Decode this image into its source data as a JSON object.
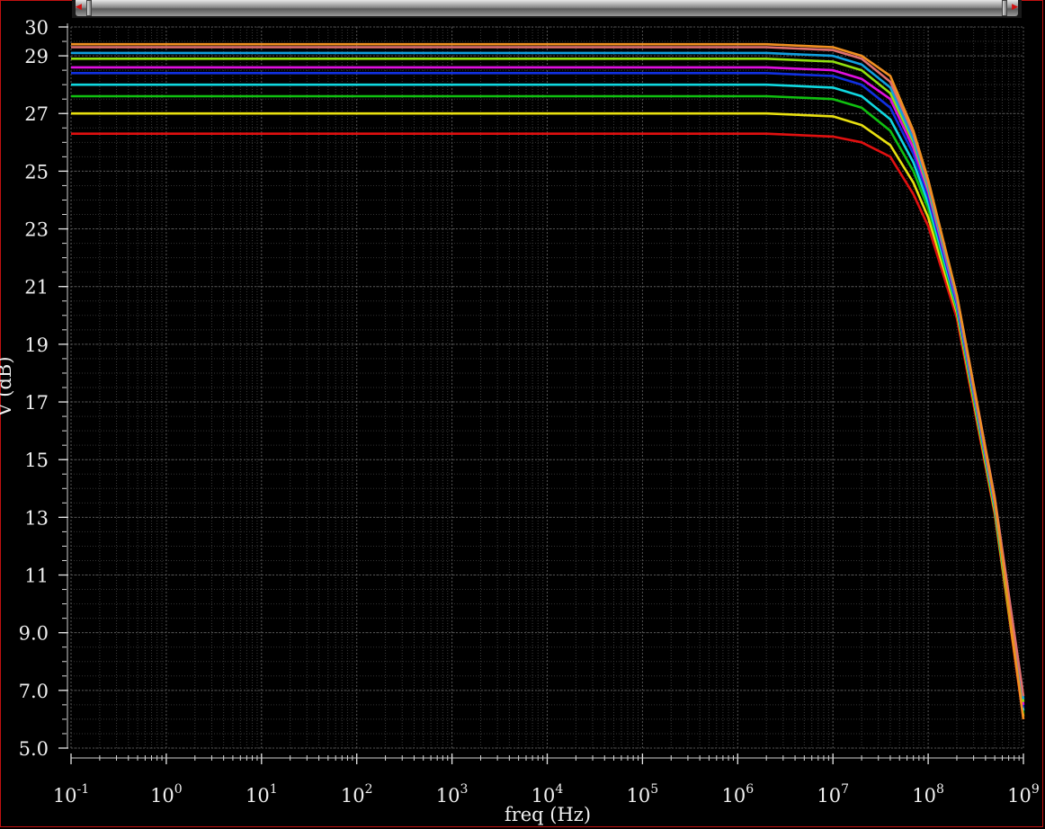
{
  "window": {
    "accent_color": "#c01010"
  },
  "scrollbar": {
    "left_arrow_icon": "arrow-left-icon",
    "right_arrow_icon": "arrow-right-icon"
  },
  "chart_data": {
    "type": "line",
    "title": "",
    "xlabel": "freq (Hz)",
    "ylabel": "V (dB)",
    "x_scale": "log",
    "xlim": [
      0.1,
      1000000000
    ],
    "ylim": [
      5.0,
      30
    ],
    "grid": true,
    "background": "#000000",
    "x_ticks": [
      {
        "base": "10",
        "exp": "-1",
        "value": 0.1
      },
      {
        "base": "10",
        "exp": "0",
        "value": 1
      },
      {
        "base": "10",
        "exp": "1",
        "value": 10
      },
      {
        "base": "10",
        "exp": "2",
        "value": 100
      },
      {
        "base": "10",
        "exp": "3",
        "value": 1000
      },
      {
        "base": "10",
        "exp": "4",
        "value": 10000
      },
      {
        "base": "10",
        "exp": "5",
        "value": 100000
      },
      {
        "base": "10",
        "exp": "6",
        "value": 1000000
      },
      {
        "base": "10",
        "exp": "7",
        "value": 10000000
      },
      {
        "base": "10",
        "exp": "8",
        "value": 100000000
      },
      {
        "base": "10",
        "exp": "9",
        "value": 1000000000
      }
    ],
    "y_ticks": [
      {
        "label": "5.0",
        "value": 5
      },
      {
        "label": "7.0",
        "value": 7
      },
      {
        "label": "9.0",
        "value": 9
      },
      {
        "label": "11",
        "value": 11
      },
      {
        "label": "13",
        "value": 13
      },
      {
        "label": "15",
        "value": 15
      },
      {
        "label": "17",
        "value": 17
      },
      {
        "label": "19",
        "value": 19
      },
      {
        "label": "21",
        "value": 21
      },
      {
        "label": "23",
        "value": 23
      },
      {
        "label": "25",
        "value": 25
      },
      {
        "label": "27",
        "value": 27
      },
      {
        "label": "29",
        "value": 29
      },
      {
        "label": "30",
        "value": 30
      }
    ],
    "series": [
      {
        "color": "#e01010",
        "points": [
          [
            0.1,
            26.3
          ],
          [
            2000000,
            26.3
          ],
          [
            10000000,
            26.2
          ],
          [
            20000000,
            26.0
          ],
          [
            40000000,
            25.5
          ],
          [
            70000000,
            24.2
          ],
          [
            100000000,
            23.1
          ],
          [
            200000000,
            19.9
          ],
          [
            500000000,
            13.1
          ],
          [
            1000000000,
            6.0
          ]
        ]
      },
      {
        "color": "#e8e010",
        "points": [
          [
            0.1,
            27.0
          ],
          [
            2000000,
            27.0
          ],
          [
            10000000,
            26.9
          ],
          [
            20000000,
            26.6
          ],
          [
            40000000,
            25.9
          ],
          [
            70000000,
            24.6
          ],
          [
            100000000,
            23.4
          ],
          [
            200000000,
            20.1
          ],
          [
            500000000,
            13.2
          ],
          [
            1000000000,
            6.1
          ]
        ]
      },
      {
        "color": "#10c010",
        "points": [
          [
            0.1,
            27.6
          ],
          [
            2000000,
            27.6
          ],
          [
            10000000,
            27.5
          ],
          [
            20000000,
            27.2
          ],
          [
            40000000,
            26.4
          ],
          [
            70000000,
            25.0
          ],
          [
            100000000,
            23.7
          ],
          [
            200000000,
            20.2
          ],
          [
            500000000,
            13.3
          ],
          [
            1000000000,
            6.2
          ]
        ]
      },
      {
        "color": "#10d8e0",
        "points": [
          [
            0.1,
            28.0
          ],
          [
            2000000,
            28.0
          ],
          [
            10000000,
            27.9
          ],
          [
            20000000,
            27.6
          ],
          [
            40000000,
            26.8
          ],
          [
            70000000,
            25.3
          ],
          [
            100000000,
            23.9
          ],
          [
            200000000,
            20.3
          ],
          [
            500000000,
            13.4
          ],
          [
            1000000000,
            6.3
          ]
        ]
      },
      {
        "color": "#1030e0",
        "points": [
          [
            0.1,
            28.4
          ],
          [
            2000000,
            28.4
          ],
          [
            10000000,
            28.3
          ],
          [
            20000000,
            28.0
          ],
          [
            40000000,
            27.2
          ],
          [
            70000000,
            25.6
          ],
          [
            100000000,
            24.1
          ],
          [
            200000000,
            20.4
          ],
          [
            500000000,
            13.5
          ],
          [
            1000000000,
            6.4
          ]
        ]
      },
      {
        "color": "#e010e0",
        "points": [
          [
            0.1,
            28.6
          ],
          [
            2000000,
            28.6
          ],
          [
            10000000,
            28.5
          ],
          [
            20000000,
            28.2
          ],
          [
            40000000,
            27.5
          ],
          [
            70000000,
            25.8
          ],
          [
            100000000,
            24.3
          ],
          [
            200000000,
            20.5
          ],
          [
            500000000,
            13.5
          ],
          [
            1000000000,
            6.5
          ]
        ]
      },
      {
        "color": "#90e010",
        "points": [
          [
            0.1,
            28.9
          ],
          [
            2000000,
            28.9
          ],
          [
            10000000,
            28.8
          ],
          [
            20000000,
            28.5
          ],
          [
            40000000,
            27.7
          ],
          [
            70000000,
            26.0
          ],
          [
            100000000,
            24.4
          ],
          [
            200000000,
            20.6
          ],
          [
            500000000,
            13.6
          ],
          [
            1000000000,
            6.6
          ]
        ]
      },
      {
        "color": "#10a0e0",
        "points": [
          [
            0.1,
            29.1
          ],
          [
            2000000,
            29.1
          ],
          [
            10000000,
            29.0
          ],
          [
            20000000,
            28.7
          ],
          [
            40000000,
            27.9
          ],
          [
            70000000,
            26.1
          ],
          [
            100000000,
            24.5
          ],
          [
            200000000,
            20.6
          ],
          [
            500000000,
            13.6
          ],
          [
            1000000000,
            6.7
          ]
        ]
      },
      {
        "color": "#e07070",
        "points": [
          [
            0.1,
            29.3
          ],
          [
            2000000,
            29.3
          ],
          [
            10000000,
            29.2
          ],
          [
            20000000,
            28.9
          ],
          [
            40000000,
            28.1
          ],
          [
            70000000,
            26.3
          ],
          [
            100000000,
            24.6
          ],
          [
            200000000,
            20.7
          ],
          [
            500000000,
            13.7
          ],
          [
            1000000000,
            6.8
          ]
        ]
      },
      {
        "color": "#f09020",
        "points": [
          [
            0.1,
            29.4
          ],
          [
            2000000,
            29.4
          ],
          [
            10000000,
            29.3
          ],
          [
            20000000,
            29.0
          ],
          [
            40000000,
            28.3
          ],
          [
            70000000,
            26.4
          ],
          [
            100000000,
            24.7
          ],
          [
            200000000,
            20.7
          ],
          [
            500000000,
            13.6
          ],
          [
            1000000000,
            6.0
          ]
        ]
      }
    ]
  }
}
